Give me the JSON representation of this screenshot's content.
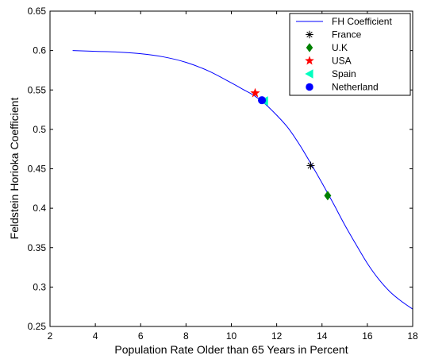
{
  "chart_data": {
    "type": "line",
    "title": "",
    "xlabel": "Population Rate Older than 65 Years in Percent",
    "ylabel": "Feldstein Horioka Coefficient",
    "xlim": [
      2,
      18
    ],
    "ylim": [
      0.25,
      0.65
    ],
    "x_ticks": [
      2,
      4,
      6,
      8,
      10,
      12,
      14,
      16,
      18
    ],
    "x_tick_labels": [
      "2",
      "4",
      "6",
      "8",
      "10",
      "12",
      "14",
      "16",
      "18"
    ],
    "y_ticks": [
      0.25,
      0.3,
      0.35,
      0.4,
      0.45,
      0.5,
      0.55,
      0.6,
      0.65
    ],
    "y_tick_labels": [
      "0.25",
      "0.3",
      "0.35",
      "0.4",
      "0.45",
      "0.5",
      "0.55",
      "0.6",
      "0.65"
    ],
    "grid": false,
    "legend_position": "top-right",
    "series": [
      {
        "name": "FH Coefficient",
        "kind": "line",
        "color": "#0000ff",
        "x": [
          3,
          4,
          5,
          6,
          7,
          8,
          9,
          10,
          10.5,
          11,
          11.5,
          12,
          12.5,
          13,
          13.5,
          14,
          14.5,
          15,
          15.5,
          16,
          16.5,
          17,
          17.5,
          18
        ],
        "y": [
          0.6,
          0.599,
          0.598,
          0.596,
          0.592,
          0.585,
          0.574,
          0.559,
          0.551,
          0.543,
          0.532,
          0.518,
          0.502,
          0.481,
          0.457,
          0.432,
          0.406,
          0.379,
          0.354,
          0.33,
          0.31,
          0.294,
          0.282,
          0.272
        ]
      },
      {
        "name": "France",
        "kind": "marker",
        "marker": "asterisk",
        "color": "#000000",
        "x": [
          13.5
        ],
        "y": [
          0.454
        ]
      },
      {
        "name": "U.K",
        "kind": "marker",
        "marker": "diamond",
        "color": "#008000",
        "x": [
          14.25
        ],
        "y": [
          0.416
        ]
      },
      {
        "name": "USA",
        "kind": "marker",
        "marker": "star",
        "color": "#ff0000",
        "x": [
          11.05
        ],
        "y": [
          0.546
        ]
      },
      {
        "name": "Spain",
        "kind": "marker",
        "marker": "triangle-left",
        "color": "#00ffbf",
        "x": [
          11.45
        ],
        "y": [
          0.536
        ]
      },
      {
        "name": "Netherland",
        "kind": "marker",
        "marker": "circle",
        "color": "#0000ff",
        "x": [
          11.35
        ],
        "y": [
          0.537
        ]
      }
    ]
  }
}
